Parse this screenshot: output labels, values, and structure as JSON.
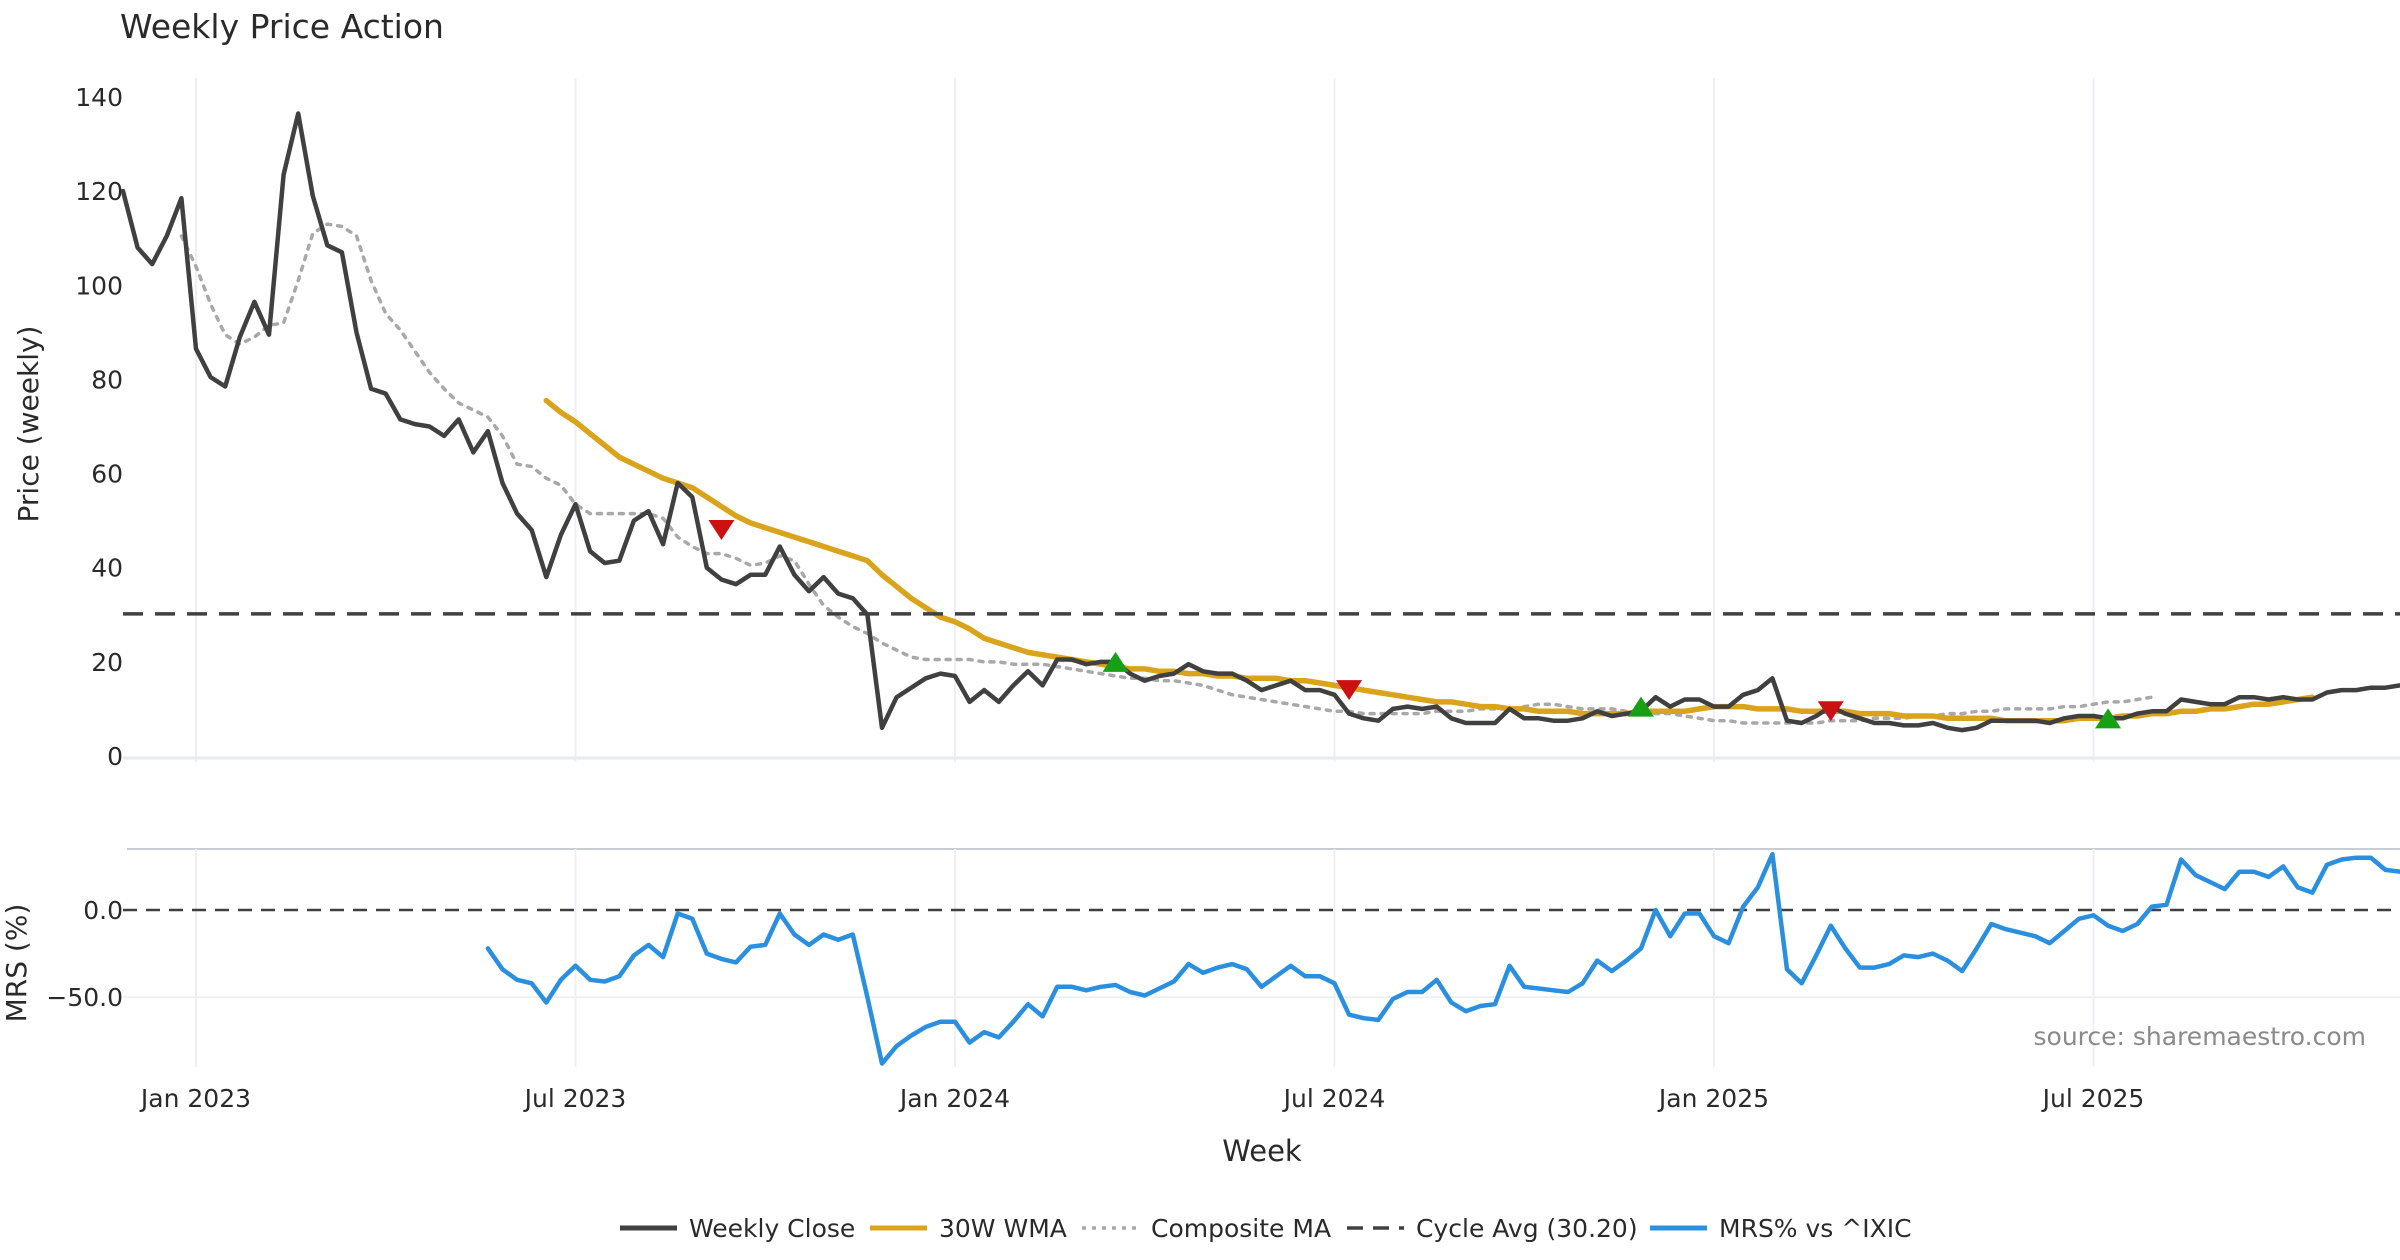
{
  "title": "Weekly Price Action",
  "source": "source: sharemaestro.com",
  "chart_data": [
    {
      "type": "line",
      "panel": "price",
      "ylabel": "Price (weekly)",
      "ylim": [
        0,
        140
      ],
      "yticks": [
        "0",
        "20",
        "40",
        "60",
        "80",
        "100",
        "120",
        "140"
      ],
      "xlabel": "Week",
      "xticks": [
        "Jan 2023",
        "Jul 2023",
        "Jan 2024",
        "Jul 2024",
        "Jan 2025",
        "Jul 2025"
      ],
      "xtick_weeks": [
        5,
        31,
        57,
        83,
        109,
        135
      ],
      "x_range_weeks": [
        0,
        156
      ],
      "series": [
        {
          "name": "Weekly Close",
          "color": "#404040",
          "style": "solid",
          "values": [
            120,
            108,
            104.5,
            110.5,
            118.5,
            86.5,
            80.5,
            78.5,
            89,
            96.5,
            89.5,
            123.5,
            136.5,
            119,
            108.5,
            107,
            90,
            78,
            77,
            71.5,
            70.5,
            70,
            68,
            71.5,
            64.5,
            69,
            58,
            51.5,
            48,
            38,
            47,
            53.5,
            43.5,
            41,
            41.5,
            50,
            52,
            45,
            58,
            55,
            40,
            37.5,
            36.5,
            38.5,
            38.5,
            44.5,
            38.5,
            35,
            38,
            34.5,
            33.5,
            30,
            6,
            12.5,
            14.5,
            16.5,
            17.5,
            17,
            11.5,
            14,
            11.5,
            15,
            18,
            15,
            20.5,
            20.5,
            19.5,
            20,
            20,
            17.5,
            16,
            17,
            17.5,
            19.5,
            18,
            17.5,
            17.5,
            16,
            14,
            15,
            16,
            14,
            14,
            13,
            9,
            8,
            7.5,
            10,
            10.5,
            10,
            10.5,
            8,
            7,
            7,
            7,
            10,
            8,
            8,
            7.5,
            7.5,
            8,
            9.5,
            8.5,
            9,
            9.5,
            12.5,
            10.5,
            12,
            12,
            10.5,
            10.5,
            13,
            14,
            16.5,
            7.5,
            7,
            8.5,
            10.5,
            9,
            8,
            7,
            7,
            6.5,
            6.5,
            7,
            6,
            5.5,
            6,
            7.5,
            7.5,
            7.5,
            7.5,
            7,
            8,
            8.5,
            8.5,
            8,
            8,
            9,
            9.5,
            9.5,
            12,
            11.5,
            11,
            11,
            12.5,
            12.5,
            12,
            12.5,
            12,
            12,
            13.5,
            14,
            14,
            14.5,
            14.5,
            15
          ]
        },
        {
          "name": "30W WMA",
          "color": "#d9a41c",
          "style": "solid",
          "start_week": 29,
          "values": [
            75.5,
            73,
            71,
            68.5,
            66,
            63.5,
            62,
            60.5,
            59,
            58,
            57,
            55,
            53,
            51,
            49.5,
            48.5,
            47.5,
            46.5,
            45.5,
            44.5,
            43.5,
            42.5,
            41.5,
            38.5,
            36,
            33.5,
            31.5,
            29.5,
            28.5,
            27,
            25,
            24,
            23,
            22,
            21.5,
            21,
            20.5,
            20,
            19.5,
            19,
            18.5,
            18.5,
            18,
            18,
            17.5,
            17.5,
            17,
            17,
            16.5,
            16.5,
            16.5,
            16,
            16,
            15.5,
            15,
            14.5,
            14,
            13.5,
            13,
            12.5,
            12,
            11.5,
            11.5,
            11,
            10.5,
            10.5,
            10,
            10,
            9.5,
            9.5,
            9.5,
            9,
            9,
            9,
            9,
            9.5,
            9.5,
            9.5,
            9.5,
            10,
            10.5,
            10.5,
            10.5,
            10,
            10,
            10,
            9.5,
            9.5,
            9.5,
            9.5,
            9,
            9,
            9,
            8.5,
            8.5,
            8.5,
            8,
            8,
            8,
            8,
            7.5,
            7.5,
            7.5,
            7.5,
            7.5,
            8,
            8,
            8,
            8.5,
            8.5,
            9,
            9,
            9.5,
            9.5,
            10,
            10,
            10.5,
            11,
            11,
            11.5,
            12,
            12.5
          ]
        },
        {
          "name": "Composite MA",
          "color": "#a8a8a8",
          "style": "dotted",
          "start_week": 4,
          "values": [
            110.5,
            104,
            96,
            89.5,
            87.5,
            89,
            91.5,
            92,
            101,
            111,
            113,
            112.5,
            110.5,
            101,
            94,
            90.5,
            86,
            81.5,
            78,
            75,
            73.5,
            72,
            68,
            62,
            61.5,
            59,
            57.5,
            53.5,
            51.5,
            51.5,
            51.5,
            51.5,
            51.5,
            50.5,
            46.5,
            44.5,
            43,
            43,
            42,
            40.5,
            41,
            42.5,
            41.5,
            36.5,
            32,
            29.5,
            27.5,
            26,
            24,
            22.5,
            21,
            20.5,
            20.5,
            20.5,
            20.5,
            20,
            20,
            19.5,
            19.5,
            19.5,
            19,
            18.5,
            18,
            17.5,
            17,
            16.5,
            16.5,
            16,
            16,
            15.5,
            15,
            14,
            13,
            12.5,
            12,
            11.5,
            11,
            10.5,
            10,
            9.5,
            9.5,
            9,
            9,
            9,
            9,
            9,
            9.5,
            9.5,
            9.5,
            10,
            10,
            10,
            10.5,
            11,
            11,
            10.5,
            10,
            10,
            10,
            9.5,
            9.5,
            9,
            9,
            8.5,
            8,
            7.5,
            7.5,
            7,
            7,
            7,
            7,
            7,
            7,
            7.5,
            7.5,
            7.5,
            8,
            8,
            8,
            8.5,
            8.5,
            9,
            9,
            9.5,
            9.5,
            10,
            10,
            10,
            10,
            10.5,
            10.5,
            11,
            11.5,
            11.5,
            12,
            12.5
          ]
        },
        {
          "name": "Cycle Avg (30.20)",
          "color": "#404040",
          "style": "dashed",
          "value": 30.2
        }
      ],
      "markers": [
        {
          "type": "sell",
          "week": 41,
          "value": 48,
          "color": "#cc1111"
        },
        {
          "type": "buy",
          "week": 68,
          "value": 20,
          "color": "#16a016"
        },
        {
          "type": "sell",
          "week": 84,
          "value": 14,
          "color": "#cc1111"
        },
        {
          "type": "buy",
          "week": 104,
          "value": 10.5,
          "color": "#16a016"
        },
        {
          "type": "sell",
          "week": 117,
          "value": 9.5,
          "color": "#cc1111"
        },
        {
          "type": "buy",
          "week": 136,
          "value": 8,
          "color": "#16a016"
        }
      ]
    },
    {
      "type": "line",
      "panel": "mrs",
      "ylabel": "MRS (%)",
      "ylim": [
        -90,
        35
      ],
      "yticks": [
        "0.0",
        "−50.0"
      ],
      "series": [
        {
          "name": "MRS% vs ^IXIC",
          "color": "#2b8fe0",
          "style": "solid",
          "start_week": 25,
          "values": [
            -22,
            -34,
            -40,
            -42,
            -53,
            -40,
            -32,
            -40,
            -41,
            -38,
            -26,
            -20,
            -27,
            -2,
            -5,
            -25,
            -28,
            -30,
            -21,
            -20,
            -2,
            -14,
            -20,
            -14,
            -17,
            -14,
            -50,
            -88,
            -78,
            -72,
            -67,
            -64,
            -64,
            -76,
            -70,
            -73,
            -64,
            -54,
            -61,
            -44,
            -44,
            -46,
            -44,
            -43,
            -47,
            -49,
            -45,
            -41,
            -31,
            -36,
            -33,
            -31,
            -34,
            -44,
            -38,
            -32,
            -38,
            -38,
            -42,
            -60,
            -62,
            -63,
            -51,
            -47,
            -47,
            -40,
            -53,
            -58,
            -55,
            -54,
            -32,
            -44,
            -45,
            -46,
            -47,
            -42,
            -29,
            -35,
            -29,
            -22,
            0,
            -15,
            -2,
            -2,
            -15,
            -19,
            2,
            13,
            32,
            -34,
            -42,
            -26,
            -9,
            -22,
            -33,
            -33,
            -31,
            -26,
            -27,
            -25,
            -29,
            -35,
            -22,
            -8,
            -11,
            -13,
            -15,
            -19,
            -12,
            -5,
            -3,
            -9,
            -12,
            -8,
            2,
            3,
            29,
            20,
            16,
            12,
            22,
            22,
            19,
            25,
            13,
            10,
            26,
            29,
            30,
            30,
            23,
            22
          ]
        }
      ]
    }
  ],
  "legend": [
    {
      "label": "Weekly Close",
      "style": "solid",
      "color": "#404040"
    },
    {
      "label": "30W WMA",
      "style": "solid",
      "color": "#d9a41c"
    },
    {
      "label": "Composite MA",
      "style": "dotted",
      "color": "#a8a8a8"
    },
    {
      "label": "Cycle Avg (30.20)",
      "style": "dashed",
      "color": "#404040"
    },
    {
      "label": "MRS% vs ^IXIC",
      "style": "solid",
      "color": "#2b8fe0"
    }
  ]
}
